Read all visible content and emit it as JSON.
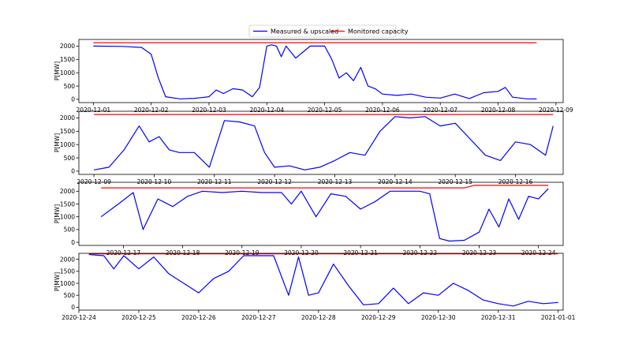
{
  "legend": {
    "placement": "top-center",
    "entries": [
      {
        "label": "Measured & upscaled",
        "color": "#0000ff"
      },
      {
        "label": "Monitored capacity",
        "color": "#ff0000"
      }
    ]
  },
  "colors": {
    "measured": "#0000ff",
    "capacity": "#ff0000",
    "axes": "#000000"
  },
  "chart_data": [
    {
      "type": "line",
      "ylabel": "P[MW]",
      "xlim": [
        "2020-11-30 18:00",
        "2020-12-09 03:00"
      ],
      "ylim": [
        -120,
        2250
      ],
      "yticks": [
        0,
        500,
        1000,
        1500,
        2000
      ],
      "xticks": [
        "2020-12-01",
        "2020-12-02",
        "2020-12-03",
        "2020-12-04",
        "2020-12-05",
        "2020-12-06",
        "2020-12-07",
        "2020-12-08",
        "2020-12-09"
      ],
      "series": [
        {
          "name": "Measured & upscaled",
          "color": "#0000ff",
          "x": [
            "2020-12-01 00:00",
            "2020-12-01 12:00",
            "2020-12-01 20:00",
            "2020-12-02 00:00",
            "2020-12-02 03:00",
            "2020-12-02 06:00",
            "2020-12-02 12:00",
            "2020-12-02 18:00",
            "2020-12-03 00:00",
            "2020-12-03 03:00",
            "2020-12-03 06:00",
            "2020-12-03 10:00",
            "2020-12-03 14:00",
            "2020-12-03 18:00",
            "2020-12-03 21:00",
            "2020-12-04 00:00",
            "2020-12-04 02:00",
            "2020-12-04 04:00",
            "2020-12-04 06:00",
            "2020-12-04 08:00",
            "2020-12-04 12:00",
            "2020-12-04 18:00",
            "2020-12-05 00:00",
            "2020-12-05 03:00",
            "2020-12-05 06:00",
            "2020-12-05 09:00",
            "2020-12-05 12:00",
            "2020-12-05 15:00",
            "2020-12-05 18:00",
            "2020-12-05 21:00",
            "2020-12-06 00:00",
            "2020-12-06 06:00",
            "2020-12-06 12:00",
            "2020-12-06 18:00",
            "2020-12-07 00:00",
            "2020-12-07 06:00",
            "2020-12-07 12:00",
            "2020-12-07 18:00",
            "2020-12-08 00:00",
            "2020-12-08 03:00",
            "2020-12-08 06:00",
            "2020-12-08 12:00",
            "2020-12-08 16:00"
          ],
          "y": [
            2000,
            1990,
            1950,
            1700,
            800,
            100,
            20,
            40,
            100,
            350,
            220,
            400,
            350,
            100,
            450,
            2000,
            2050,
            2000,
            1600,
            2000,
            1550,
            2000,
            2000,
            1500,
            800,
            1000,
            700,
            1200,
            500,
            400,
            200,
            150,
            200,
            80,
            50,
            200,
            30,
            250,
            300,
            450,
            80,
            20,
            15
          ]
        },
        {
          "name": "Monitored capacity",
          "color": "#ff0000",
          "x": [
            "2020-12-01 00:00",
            "2020-12-08 16:00"
          ],
          "y": [
            2130,
            2130
          ]
        }
      ]
    },
    {
      "type": "line",
      "ylabel": "P[MW]",
      "xlim": [
        "2020-12-08 18:00",
        "2020-12-16 19:00"
      ],
      "ylim": [
        -120,
        2250
      ],
      "yticks": [
        0,
        500,
        1000,
        1500,
        2000
      ],
      "xticks": [
        "2020-12-09",
        "2020-12-10",
        "2020-12-11",
        "2020-12-12",
        "2020-12-13",
        "2020-12-14",
        "2020-12-15",
        "2020-12-16"
      ],
      "series": [
        {
          "name": "Measured & upscaled",
          "color": "#0000ff",
          "x": [
            "2020-12-09 00:00",
            "2020-12-09 06:00",
            "2020-12-09 12:00",
            "2020-12-09 18:00",
            "2020-12-09 22:00",
            "2020-12-10 02:00",
            "2020-12-10 06:00",
            "2020-12-10 10:00",
            "2020-12-10 16:00",
            "2020-12-10 22:00",
            "2020-12-11 04:00",
            "2020-12-11 10:00",
            "2020-12-11 16:00",
            "2020-12-11 20:00",
            "2020-12-12 00:00",
            "2020-12-12 06:00",
            "2020-12-12 12:00",
            "2020-12-12 18:00",
            "2020-12-13 00:00",
            "2020-12-13 06:00",
            "2020-12-13 12:00",
            "2020-12-13 18:00",
            "2020-12-14 00:00",
            "2020-12-14 06:00",
            "2020-12-14 12:00",
            "2020-12-14 18:00",
            "2020-12-15 00:00",
            "2020-12-15 06:00",
            "2020-12-15 12:00",
            "2020-12-15 18:00",
            "2020-12-16 00:00",
            "2020-12-16 06:00",
            "2020-12-16 12:00",
            "2020-12-16 15:00"
          ],
          "y": [
            50,
            150,
            800,
            1700,
            1100,
            1300,
            800,
            700,
            700,
            150,
            1900,
            1850,
            1700,
            700,
            150,
            200,
            50,
            150,
            400,
            700,
            600,
            1500,
            2050,
            2000,
            2050,
            1700,
            1800,
            1200,
            600,
            400,
            1100,
            1000,
            600,
            1700
          ]
        },
        {
          "name": "Monitored capacity",
          "color": "#ff0000",
          "x": [
            "2020-12-09 00:00",
            "2020-12-16 15:00"
          ],
          "y": [
            2130,
            2130
          ]
        }
      ]
    },
    {
      "type": "line",
      "ylabel": "P[MW]",
      "xlim": [
        "2020-12-16 06:00",
        "2020-12-24 10:00"
      ],
      "ylim": [
        -120,
        2350
      ],
      "yticks": [
        0,
        500,
        1000,
        1500,
        2000
      ],
      "xticks": [
        "2020-12-17",
        "2020-12-18",
        "2020-12-19",
        "2020-12-20",
        "2020-12-21",
        "2020-12-22",
        "2020-12-23",
        "2020-12-24"
      ],
      "series": [
        {
          "name": "Measured & upscaled",
          "color": "#0000ff",
          "x": [
            "2020-12-16 15:00",
            "2020-12-16 22:00",
            "2020-12-17 04:00",
            "2020-12-17 08:00",
            "2020-12-17 14:00",
            "2020-12-17 20:00",
            "2020-12-18 02:00",
            "2020-12-18 08:00",
            "2020-12-18 16:00",
            "2020-12-19 00:00",
            "2020-12-19 08:00",
            "2020-12-19 16:00",
            "2020-12-19 20:00",
            "2020-12-20 00:00",
            "2020-12-20 06:00",
            "2020-12-20 12:00",
            "2020-12-20 18:00",
            "2020-12-21 00:00",
            "2020-12-21 06:00",
            "2020-12-21 12:00",
            "2020-12-21 18:00",
            "2020-12-22 00:00",
            "2020-12-22 04:00",
            "2020-12-22 08:00",
            "2020-12-22 12:00",
            "2020-12-22 18:00",
            "2020-12-23 00:00",
            "2020-12-23 04:00",
            "2020-12-23 08:00",
            "2020-12-23 12:00",
            "2020-12-23 16:00",
            "2020-12-23 20:00",
            "2020-12-24 00:00",
            "2020-12-24 04:00"
          ],
          "y": [
            1000,
            1500,
            1950,
            500,
            1700,
            1400,
            1800,
            2000,
            1950,
            2000,
            1950,
            1950,
            1500,
            2000,
            1000,
            1900,
            1800,
            1300,
            1600,
            2000,
            2000,
            2000,
            1900,
            150,
            50,
            80,
            400,
            1300,
            600,
            1700,
            900,
            1800,
            1700,
            2100
          ]
        },
        {
          "name": "Monitored capacity",
          "color": "#ff0000",
          "x": [
            "2020-12-16 15:00",
            "2020-12-22 18:00",
            "2020-12-22 22:00",
            "2020-12-24 04:00"
          ],
          "y": [
            2130,
            2130,
            2230,
            2230
          ]
        }
      ]
    },
    {
      "type": "line",
      "ylabel": "P[MW]",
      "xlim": [
        "2020-12-24 00:00",
        "2021-01-01 02:00"
      ],
      "ylim": [
        -120,
        2250
      ],
      "yticks": [
        0,
        500,
        1000,
        1500,
        2000
      ],
      "xticks": [
        "2020-12-24",
        "2020-12-25",
        "2020-12-26",
        "2020-12-27",
        "2020-12-28",
        "2020-12-29",
        "2020-12-30",
        "2020-12-31",
        "2021-01-01"
      ],
      "series": [
        {
          "name": "Measured & upscaled",
          "color": "#0000ff",
          "x": [
            "2020-12-24 04:00",
            "2020-12-24 10:00",
            "2020-12-24 14:00",
            "2020-12-24 18:00",
            "2020-12-25 00:00",
            "2020-12-25 06:00",
            "2020-12-25 12:00",
            "2020-12-25 18:00",
            "2020-12-26 00:00",
            "2020-12-26 06:00",
            "2020-12-26 12:00",
            "2020-12-26 18:00",
            "2020-12-27 00:00",
            "2020-12-27 06:00",
            "2020-12-27 12:00",
            "2020-12-27 16:00",
            "2020-12-27 20:00",
            "2020-12-28 00:00",
            "2020-12-28 06:00",
            "2020-12-28 12:00",
            "2020-12-28 18:00",
            "2020-12-29 00:00",
            "2020-12-29 06:00",
            "2020-12-29 12:00",
            "2020-12-29 18:00",
            "2020-12-30 00:00",
            "2020-12-30 06:00",
            "2020-12-30 12:00",
            "2020-12-30 18:00",
            "2020-12-31 00:00",
            "2020-12-31 06:00",
            "2020-12-31 12:00",
            "2020-12-31 18:00",
            "2021-01-01 00:00"
          ],
          "y": [
            2200,
            2150,
            1600,
            2150,
            1600,
            2100,
            1400,
            1000,
            600,
            1200,
            1500,
            2150,
            2150,
            2150,
            500,
            2100,
            500,
            600,
            1800,
            900,
            100,
            150,
            800,
            150,
            600,
            500,
            1000,
            700,
            300,
            150,
            50,
            250,
            150,
            200
          ]
        },
        {
          "name": "Monitored capacity",
          "color": "#ff0000",
          "x": [
            "2020-12-24 04:00",
            "2021-01-01 00:00"
          ],
          "y": [
            2230,
            2230
          ]
        }
      ]
    }
  ]
}
